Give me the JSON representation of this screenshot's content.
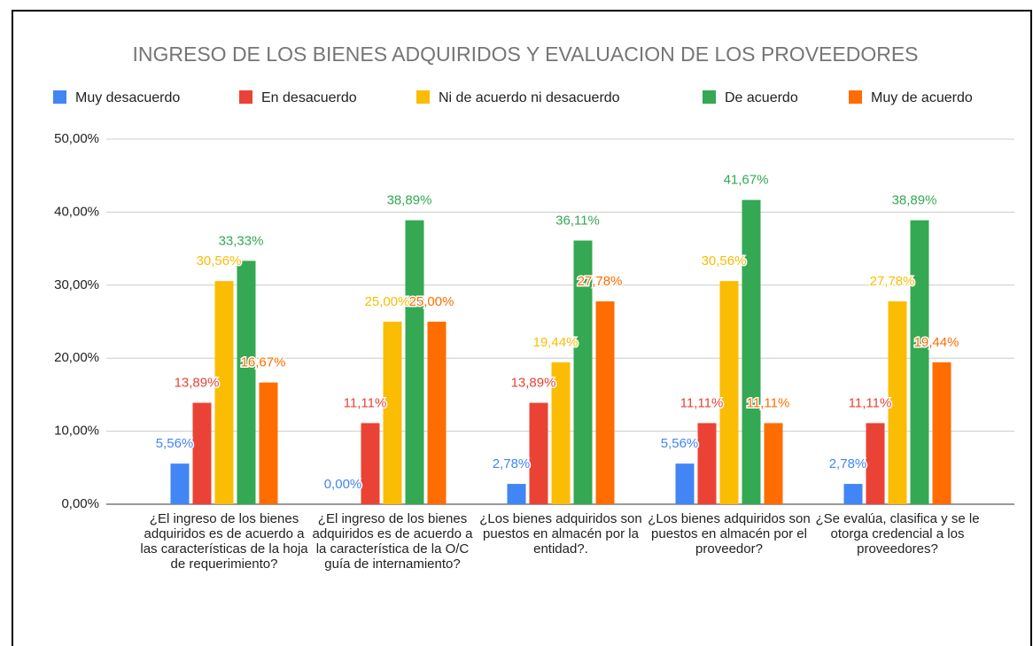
{
  "chart_data": {
    "type": "bar",
    "title": "INGRESO DE LOS BIENES ADQUIRIDOS Y EVALUACION DE LOS PROVEEDORES",
    "categories": [
      "¿El ingreso de los bienes adquiridos es de acuerdo a las características de la hoja de requerimiento?",
      "¿El ingreso de los bienes adquiridos es de acuerdo a la característica de la O/C guía de internamiento?",
      "¿Los bienes adquiridos son puestos en almacén por la entidad?.",
      "¿Los bienes adquiridos son puestos en almacén por el proveedor?",
      "¿Se evalúa, clasifica y se le otorga credencial a los proveedores?"
    ],
    "series": [
      {
        "name": "Muy desacuerdo",
        "color": "#4285f4",
        "values": [
          5.56,
          0,
          2.78,
          5.56,
          2.78
        ],
        "value_labels": [
          "5,56%",
          "0,00%",
          "2,78%",
          "5,56%",
          "2,78%"
        ]
      },
      {
        "name": "En desacuerdo",
        "color": "#ea4335",
        "values": [
          13.89,
          11.11,
          13.89,
          11.11,
          11.11
        ],
        "value_labels": [
          "13,89%",
          "11,11%",
          "13,89%",
          "11,11%",
          "11,11%"
        ]
      },
      {
        "name": "Ni de acuerdo ni desacuerdo",
        "color": "#fbbc04",
        "values": [
          30.56,
          25,
          19.44,
          30.56,
          27.78
        ],
        "value_labels": [
          "30,56%",
          "25,00%",
          "19,44%",
          "30,56%",
          "27,78%"
        ]
      },
      {
        "name": "De acuerdo",
        "color": "#34a853",
        "values": [
          33.33,
          38.89,
          36.11,
          41.67,
          38.89
        ],
        "value_labels": [
          "33,33%",
          "38,89%",
          "36,11%",
          "41,67%",
          "38,89%"
        ]
      },
      {
        "name": "Muy de acuerdo",
        "color": "#ff6d01",
        "values": [
          16.67,
          25,
          27.78,
          11.11,
          19.44
        ],
        "value_labels": [
          "16,67%",
          "25,00%",
          "27,78%",
          "11,11%",
          "19,44%"
        ]
      }
    ],
    "ylim": [
      0,
      50
    ],
    "yticks": [
      {
        "value": 0,
        "label": "0,00%"
      },
      {
        "value": 10,
        "label": "10,00%"
      },
      {
        "value": 20,
        "label": "20,00%"
      },
      {
        "value": 30,
        "label": "30,00%"
      },
      {
        "value": 40,
        "label": "40,00%"
      },
      {
        "value": 50,
        "label": "50,00%"
      }
    ],
    "grid": true,
    "legend": "top"
  }
}
